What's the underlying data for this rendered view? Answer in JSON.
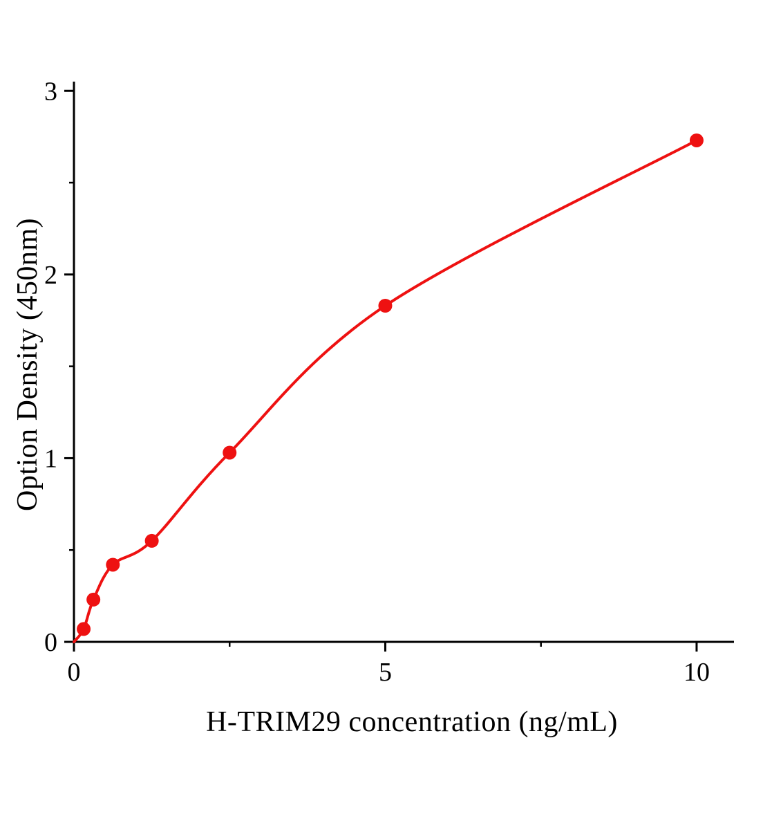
{
  "figure": {
    "background": "#ffffff"
  },
  "chart_data": {
    "type": "scatter",
    "title": "",
    "xlabel": "H-TRIM29 concentration (ng/mL)",
    "ylabel": "Option Density (450nm)",
    "x": [
      0.156,
      0.3125,
      0.625,
      1.25,
      2.5,
      5,
      10
    ],
    "y": [
      0.07,
      0.23,
      0.42,
      0.55,
      1.03,
      1.83,
      2.73
    ],
    "fit_curve_start": [
      0,
      0
    ],
    "xlim": [
      0,
      10.6
    ],
    "ylim": [
      0,
      3.05
    ],
    "x_ticks": [
      0,
      5,
      10
    ],
    "y_ticks": [
      0,
      1,
      2,
      3
    ],
    "x_minor_ticks": [
      2.5,
      7.5
    ],
    "y_minor_ticks": [
      0.5,
      1.5,
      2.5
    ],
    "grid": false,
    "legend": null,
    "marker_color": "#ee1111",
    "line_color": "#ee1111",
    "axis_color": "#000000"
  }
}
